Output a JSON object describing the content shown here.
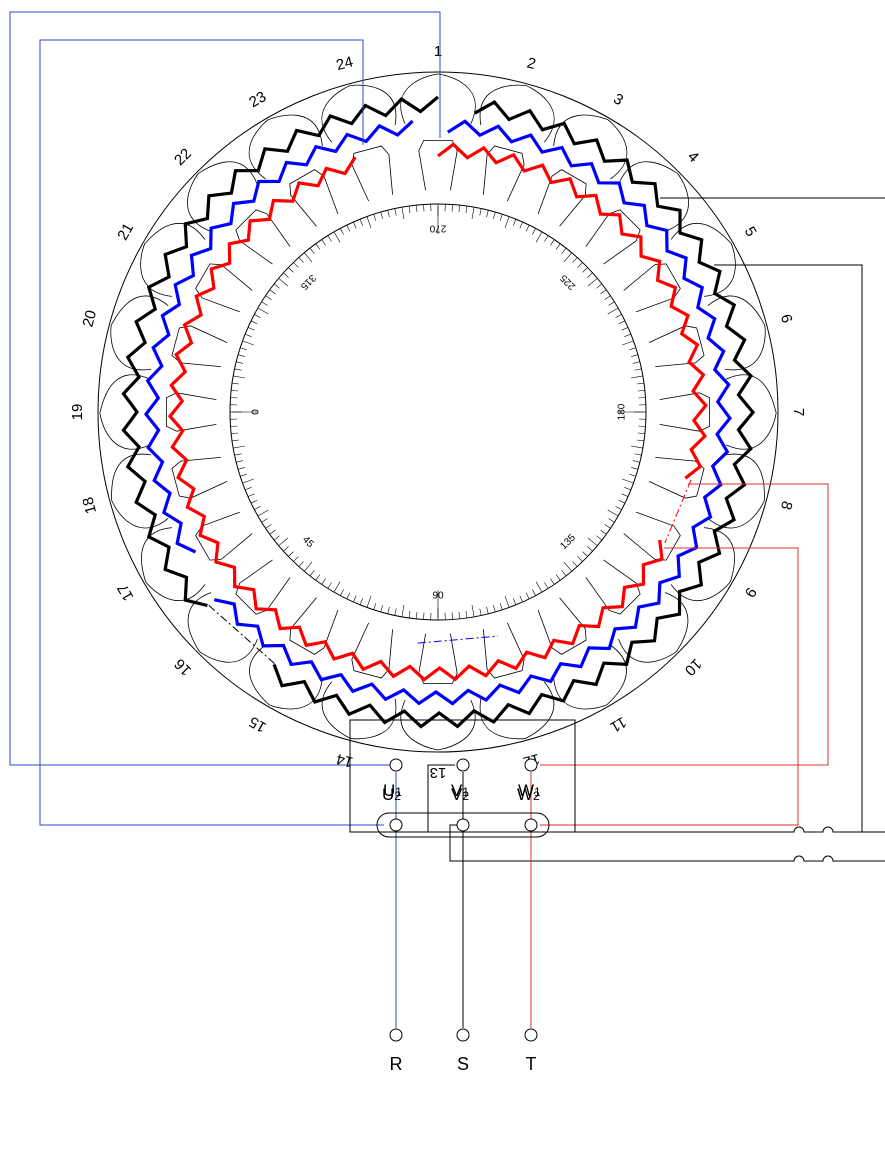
{
  "slots": [
    "1",
    "2",
    "3",
    "4",
    "5",
    "6",
    "7",
    "8",
    "9",
    "10",
    "11",
    "12",
    "13",
    "14",
    "15",
    "16",
    "17",
    "18",
    "19",
    "20",
    "21",
    "22",
    "23",
    "24"
  ],
  "degree_labels": [
    "0",
    "45",
    "90",
    "135",
    "180",
    "225",
    "270",
    "315"
  ],
  "terminal_box": {
    "top_row": [
      {
        "letter": "U",
        "sub": "2"
      },
      {
        "letter": "V",
        "sub": "2"
      },
      {
        "letter": "W",
        "sub": "2"
      }
    ],
    "bottom_row": [
      {
        "letter": "U",
        "sub": "1"
      },
      {
        "letter": "V",
        "sub": "1"
      },
      {
        "letter": "W",
        "sub": "1"
      }
    ]
  },
  "supply": [
    "R",
    "S",
    "T"
  ],
  "colors": {
    "phase_u": "#0000ff",
    "phase_v": "#000000",
    "phase_w": "#ff0000",
    "line": "#000000",
    "lead_u": "#3344cc",
    "lead_w": "#dd3333"
  }
}
